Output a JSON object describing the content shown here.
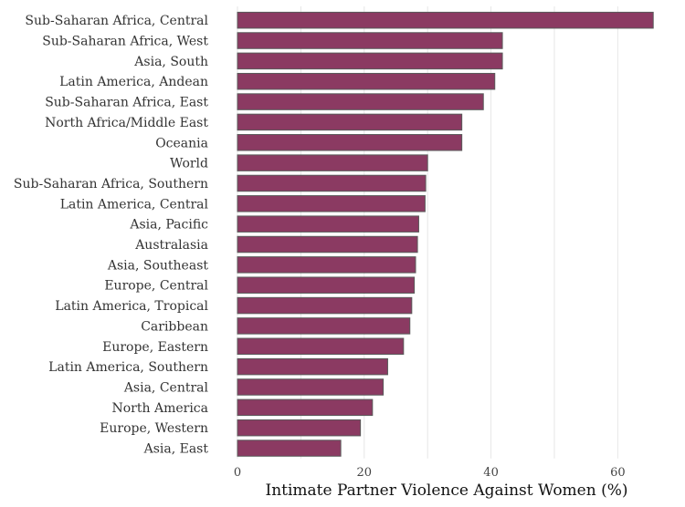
{
  "chart_data": {
    "type": "bar",
    "orientation": "horizontal",
    "title": "",
    "xlabel": "Intimate Partner Violence Against Women (%)",
    "ylabel": "",
    "xlim": [
      0,
      66
    ],
    "xticks": [
      0,
      20,
      40,
      60
    ],
    "grid": true,
    "bar_color": "#8b3a62",
    "bar_edge_color": "#5a5a5a",
    "categories": [
      "Sub-Saharan Africa, Central",
      "Sub-Saharan Africa, West",
      "Asia, South",
      "Latin America, Andean",
      "Sub-Saharan Africa, East",
      "North Africa/Middle East",
      "Oceania",
      "World",
      "Sub-Saharan Africa, Southern",
      "Latin America, Central",
      "Asia, Pacific",
      "Australasia",
      "Asia, Southeast",
      "Europe, Central",
      "Latin America, Tropical",
      "Caribbean",
      "Europe, Eastern",
      "Latin America, Southern",
      "Asia, Central",
      "North America",
      "Europe, Western",
      "Asia, East"
    ],
    "values": [
      65.6,
      41.8,
      41.8,
      40.6,
      38.8,
      35.4,
      35.4,
      30.0,
      29.7,
      29.6,
      28.6,
      28.4,
      28.1,
      27.9,
      27.5,
      27.2,
      26.2,
      23.7,
      23.0,
      21.3,
      19.4,
      16.3
    ]
  }
}
